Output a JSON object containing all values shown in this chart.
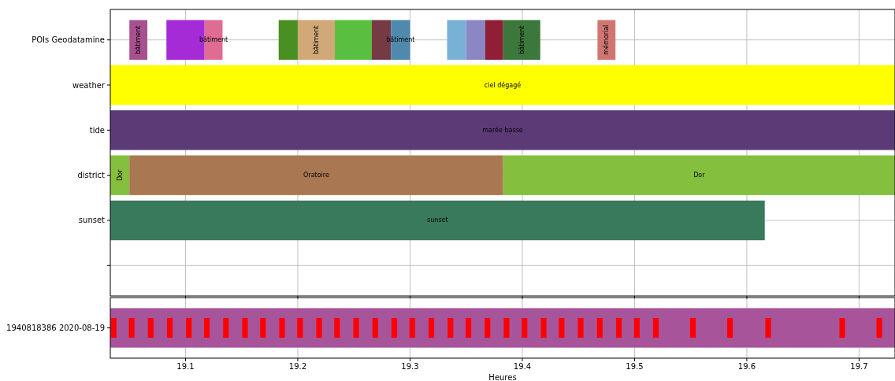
{
  "chart_data": [
    {
      "type": "bar",
      "orientation": "horizontal",
      "categories": [
        "POIs Geodatamine",
        "weather",
        "tide",
        "district",
        "sunset",
        null
      ],
      "xlim": [
        19.033,
        19.732
      ],
      "xticks": [
        19.1,
        19.2,
        19.3,
        19.4,
        19.5,
        19.6,
        19.7
      ],
      "grid": true,
      "tick_labels": "y",
      "series": [
        {
          "base": [
            19.05,
            19.033,
            19.033,
            19.033,
            19.033,
            null
          ],
          "values": [
            0.016,
            0.699,
            0.699,
            0.017,
            0.583,
            null
          ],
          "colors": [
            "#a8518f",
            "#ffff00",
            "#5c3a76",
            "#85bf3e",
            "#3a7a5c",
            null
          ],
          "value_labels": [
            "bâtiment",
            "ciel dégagé",
            "marée basse",
            "Dor",
            "sunset",
            null
          ]
        },
        {
          "base": [
            19.083,
            null,
            null,
            19.05,
            null,
            null
          ],
          "values": [
            0.034,
            null,
            null,
            0.333,
            null,
            null
          ],
          "colors": [
            "#a52bd6",
            null,
            null,
            "#aa7753",
            null,
            null
          ],
          "value_labels": [
            null,
            null,
            null,
            "Oratoire",
            null,
            null
          ]
        },
        {
          "base": [
            19.117,
            null,
            null,
            19.383,
            null,
            null
          ],
          "values": [
            0.016,
            null,
            null,
            0.349,
            null,
            null
          ],
          "colors": [
            "#e06c94",
            null,
            null,
            "#85bf3e",
            null,
            null
          ],
          "value_labels": [
            "bâtiment",
            null,
            null,
            "Dor",
            null,
            null
          ]
        },
        {
          "base": [
            19.183,
            null,
            null,
            null,
            null,
            null
          ],
          "values": [
            0.017,
            null,
            null,
            null,
            null,
            null
          ],
          "colors": [
            "#4a8f22",
            null,
            null,
            null,
            null,
            null
          ]
        },
        {
          "base": [
            19.2,
            null,
            null,
            null,
            null,
            null
          ],
          "values": [
            0.033,
            null,
            null,
            null,
            null,
            null
          ],
          "colors": [
            "#d1a878",
            null,
            null,
            null,
            null,
            null
          ],
          "value_labels": [
            "bâtiment",
            null,
            null,
            null,
            null,
            null
          ]
        },
        {
          "base": [
            19.233,
            null,
            null,
            null,
            null,
            null
          ],
          "values": [
            0.033,
            null,
            null,
            null,
            null,
            null
          ],
          "colors": [
            "#5abf40",
            null,
            null,
            null,
            null,
            null
          ]
        },
        {
          "base": [
            19.266,
            null,
            null,
            null,
            null,
            null
          ],
          "values": [
            0.017,
            null,
            null,
            null,
            null,
            null
          ],
          "colors": [
            "#763a44",
            null,
            null,
            null,
            null,
            null
          ]
        },
        {
          "base": [
            19.283,
            null,
            null,
            null,
            null,
            null
          ],
          "values": [
            0.017,
            null,
            null,
            null,
            null,
            null
          ],
          "colors": [
            "#4f89ad",
            null,
            null,
            null,
            null,
            null
          ],
          "value_labels": [
            "bâtiment",
            null,
            null,
            null,
            null,
            null
          ]
        },
        {
          "base": [
            19.333,
            null,
            null,
            null,
            null,
            null
          ],
          "values": [
            0.017,
            null,
            null,
            null,
            null,
            null
          ],
          "colors": [
            "#79b1d6",
            null,
            null,
            null,
            null,
            null
          ]
        },
        {
          "base": [
            19.35,
            null,
            null,
            null,
            null,
            null
          ],
          "values": [
            0.017,
            null,
            null,
            null,
            null,
            null
          ],
          "colors": [
            "#8a87c4",
            null,
            null,
            null,
            null,
            null
          ]
        },
        {
          "base": [
            19.367,
            null,
            null,
            null,
            null,
            null
          ],
          "values": [
            0.016,
            null,
            null,
            null,
            null,
            null
          ],
          "colors": [
            "#901f35",
            null,
            null,
            null,
            null,
            null
          ]
        },
        {
          "base": [
            19.383,
            null,
            null,
            null,
            null,
            null
          ],
          "values": [
            0.033,
            null,
            null,
            null,
            null,
            null
          ],
          "colors": [
            "#3c783b",
            null,
            null,
            null,
            null,
            null
          ],
          "value_labels": [
            "bâtiment",
            null,
            null,
            null,
            null,
            null
          ]
        },
        {
          "base": [
            19.467,
            null,
            null,
            null,
            null,
            null
          ],
          "values": [
            0.016,
            null,
            null,
            null,
            null,
            null
          ],
          "colors": [
            "#d07672",
            null,
            null,
            null,
            null,
            null
          ],
          "value_labels": [
            "mémorial",
            null,
            null,
            null,
            null,
            null
          ]
        }
      ]
    },
    {
      "type": "bar",
      "orientation": "horizontal",
      "categories": [
        "1940818386 2020-08-19"
      ],
      "xlim": [
        19.033,
        19.732
      ],
      "xticks": [
        19.1,
        19.2,
        19.3,
        19.4,
        19.5,
        19.6,
        19.7
      ],
      "grid": true,
      "xlabel": "Heures",
      "series": [
        {
          "base": [
            19.033
          ],
          "values": [
            0.699
          ],
          "color": "#a8549a"
        },
        {
          "base": [
            19.0335
          ],
          "values": [
            0.005
          ],
          "color": "#ff0000"
        },
        {
          "base": [
            19.0495
          ],
          "values": [
            0.005
          ],
          "color": "#ff0000"
        },
        {
          "base": [
            19.0665
          ],
          "values": [
            0.005
          ],
          "color": "#ff0000"
        },
        {
          "base": [
            19.0835
          ],
          "values": [
            0.005
          ],
          "color": "#ff0000"
        },
        {
          "base": [
            19.1005
          ],
          "values": [
            0.005
          ],
          "color": "#ff0000"
        },
        {
          "base": [
            19.1165
          ],
          "values": [
            0.005
          ],
          "color": "#ff0000"
        },
        {
          "base": [
            19.1335
          ],
          "values": [
            0.005
          ],
          "color": "#ff0000"
        },
        {
          "base": [
            19.1505
          ],
          "values": [
            0.005
          ],
          "color": "#ff0000"
        },
        {
          "base": [
            19.1665
          ],
          "values": [
            0.005
          ],
          "color": "#ff0000"
        },
        {
          "base": [
            19.1835
          ],
          "values": [
            0.005
          ],
          "color": "#ff0000"
        },
        {
          "base": [
            19.1995
          ],
          "values": [
            0.005
          ],
          "color": "#ff0000"
        },
        {
          "base": [
            19.2165
          ],
          "values": [
            0.005
          ],
          "color": "#ff0000"
        },
        {
          "base": [
            19.2325
          ],
          "values": [
            0.005
          ],
          "color": "#ff0000"
        },
        {
          "base": [
            19.2495
          ],
          "values": [
            0.005
          ],
          "color": "#ff0000"
        },
        {
          "base": [
            19.2665
          ],
          "values": [
            0.005
          ],
          "color": "#ff0000"
        },
        {
          "base": [
            19.2835
          ],
          "values": [
            0.005
          ],
          "color": "#ff0000"
        },
        {
          "base": [
            19.2995
          ],
          "values": [
            0.005
          ],
          "color": "#ff0000"
        },
        {
          "base": [
            19.3165
          ],
          "values": [
            0.005
          ],
          "color": "#ff0000"
        },
        {
          "base": [
            19.3335
          ],
          "values": [
            0.005
          ],
          "color": "#ff0000"
        },
        {
          "base": [
            19.3495
          ],
          "values": [
            0.005
          ],
          "color": "#ff0000"
        },
        {
          "base": [
            19.3665
          ],
          "values": [
            0.005
          ],
          "color": "#ff0000"
        },
        {
          "base": [
            19.3835
          ],
          "values": [
            0.005
          ],
          "color": "#ff0000"
        },
        {
          "base": [
            19.3995
          ],
          "values": [
            0.005
          ],
          "color": "#ff0000"
        },
        {
          "base": [
            19.4165
          ],
          "values": [
            0.005
          ],
          "color": "#ff0000"
        },
        {
          "base": [
            19.4325
          ],
          "values": [
            0.005
          ],
          "color": "#ff0000"
        },
        {
          "base": [
            19.4495
          ],
          "values": [
            0.005
          ],
          "color": "#ff0000"
        },
        {
          "base": [
            19.4665
          ],
          "values": [
            0.005
          ],
          "color": "#ff0000"
        },
        {
          "base": [
            19.4835
          ],
          "values": [
            0.005
          ],
          "color": "#ff0000"
        },
        {
          "base": [
            19.4995
          ],
          "values": [
            0.005
          ],
          "color": "#ff0000"
        },
        {
          "base": [
            19.5165
          ],
          "values": [
            0.005
          ],
          "color": "#ff0000"
        },
        {
          "base": [
            19.5495
          ],
          "values": [
            0.005
          ],
          "color": "#ff0000"
        },
        {
          "base": [
            19.5825
          ],
          "values": [
            0.005
          ],
          "color": "#ff0000"
        },
        {
          "base": [
            19.6165
          ],
          "values": [
            0.005
          ],
          "color": "#ff0000"
        },
        {
          "base": [
            19.6825
          ],
          "values": [
            0.005
          ],
          "color": "#ff0000"
        },
        {
          "base": [
            19.7155
          ],
          "values": [
            0.005
          ],
          "color": "#ff0000"
        }
      ]
    }
  ]
}
